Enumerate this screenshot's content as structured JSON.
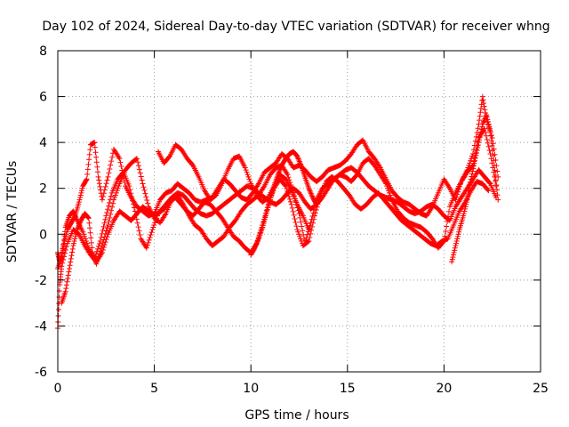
{
  "chart_data": {
    "type": "scatter",
    "title": "Day 102 of 2024, Sidereal Day-to-day VTEC variation (SDTVAR) for receiver whng",
    "xlabel": "GPS time / hours",
    "ylabel": "SDTVAR / TECUs",
    "xlim": [
      0,
      25
    ],
    "ylim": [
      -6,
      8
    ],
    "xticks": [
      0,
      5,
      10,
      15,
      20,
      25
    ],
    "yticks": [
      -6,
      -4,
      -2,
      0,
      2,
      4,
      6,
      8
    ],
    "grid": true,
    "marker": "+",
    "color": "#ff0000",
    "series": [
      {
        "name": "track1",
        "x": [
          0.0,
          0.1,
          0.2,
          0.3,
          0.5,
          0.7,
          0.9,
          1.1,
          1.3,
          1.5,
          1.7,
          1.9,
          2.1,
          2.3,
          2.6,
          2.9,
          3.2,
          3.5,
          3.8,
          4.1,
          4.4,
          4.7,
          5.0,
          5.3,
          5.6,
          5.9,
          6.2,
          6.5,
          6.8,
          7.1,
          7.4,
          7.7,
          8.0,
          8.3,
          8.6,
          8.9,
          9.2,
          9.5,
          9.8,
          10.1,
          10.4,
          10.7,
          11.0,
          11.3,
          11.6,
          11.9,
          12.2,
          12.5,
          12.8,
          13.1,
          13.4,
          13.7,
          14.0,
          14.3,
          14.6,
          14.9,
          15.2,
          15.5,
          15.8,
          16.1,
          16.4,
          16.7,
          17.0,
          17.3,
          17.6,
          17.9,
          18.2,
          18.5,
          18.8,
          19.1,
          19.4,
          19.7,
          20.0,
          20.3,
          20.6,
          20.9,
          21.2,
          21.5,
          21.8,
          22.0,
          22.2,
          22.5,
          22.8
        ],
        "y": [
          -0.8,
          -1.2,
          -1.0,
          -0.5,
          0.2,
          0.5,
          0.8,
          1.4,
          2.1,
          2.4,
          3.9,
          4.0,
          2.5,
          1.5,
          2.5,
          3.7,
          3.3,
          2.1,
          1.6,
          1.2,
          1.0,
          0.8,
          0.9,
          1.5,
          1.8,
          1.9,
          2.2,
          2.0,
          1.8,
          1.5,
          1.4,
          1.5,
          1.6,
          2.0,
          2.4,
          2.2,
          1.9,
          1.6,
          1.5,
          1.8,
          2.2,
          2.7,
          2.9,
          3.1,
          3.5,
          3.3,
          2.9,
          3.0,
          2.8,
          2.5,
          2.3,
          2.5,
          2.8,
          2.9,
          3.0,
          3.2,
          3.5,
          3.9,
          4.1,
          3.6,
          3.3,
          2.9,
          2.4,
          1.9,
          1.6,
          1.4,
          1.3,
          1.1,
          0.9,
          0.8,
          1.2,
          1.8,
          2.4,
          2.0,
          1.5,
          2.3,
          2.8,
          3.5,
          4.8,
          6.0,
          5.0,
          4.2,
          2.5
        ]
      },
      {
        "name": "track2",
        "x": [
          0.2,
          0.4,
          0.6,
          0.8,
          1.0,
          1.2,
          1.4,
          1.6,
          1.8,
          2.0,
          2.3,
          2.6,
          2.9,
          3.2,
          3.5,
          3.8,
          4.1,
          4.4,
          4.7,
          5.0,
          5.3,
          5.6,
          5.9,
          6.2,
          6.5,
          6.8,
          7.1,
          7.4,
          7.7,
          8.0,
          8.3,
          8.6,
          8.9,
          9.2,
          9.5,
          9.8,
          10.1,
          10.4,
          10.7,
          11.0,
          11.3,
          11.6,
          11.9,
          12.2,
          12.5,
          12.8,
          13.1,
          13.4,
          13.7,
          14.0,
          14.3,
          14.6,
          14.9,
          15.2,
          15.5,
          15.8,
          16.1,
          16.4,
          16.7,
          17.0,
          17.3,
          17.6,
          17.9,
          18.2,
          18.5,
          18.8,
          19.1,
          19.4,
          19.7,
          20.0,
          20.3,
          20.6,
          20.9,
          21.2,
          21.5,
          21.8,
          22.1,
          22.4,
          22.7
        ],
        "y": [
          -3.0,
          -2.5,
          -1.5,
          -0.5,
          0.2,
          0.6,
          0.9,
          0.7,
          -0.8,
          -1.3,
          -0.5,
          0.4,
          1.5,
          2.2,
          2.8,
          3.1,
          3.3,
          2.2,
          1.2,
          0.7,
          0.5,
          0.9,
          1.5,
          1.7,
          1.3,
          0.8,
          0.4,
          0.2,
          -0.2,
          -0.5,
          -0.3,
          -0.1,
          0.3,
          0.6,
          1.0,
          1.3,
          1.5,
          1.7,
          2.1,
          2.6,
          2.9,
          3.0,
          2.6,
          1.8,
          0.9,
          -0.4,
          0.5,
          1.5,
          2.0,
          2.2,
          2.4,
          2.6,
          2.5,
          2.3,
          2.6,
          3.1,
          3.3,
          3.0,
          2.6,
          2.2,
          1.5,
          1.0,
          0.7,
          0.5,
          0.4,
          0.3,
          0.1,
          -0.2,
          -0.6,
          -0.3,
          1.2,
          1.8,
          2.3,
          2.7,
          3.0,
          4.2,
          4.6,
          3.5,
          2.1
        ]
      },
      {
        "name": "track3",
        "x": [
          0.0,
          0.2,
          0.4,
          0.6,
          0.8,
          1.0,
          1.3,
          1.6,
          1.9,
          2.2,
          2.5,
          2.8,
          3.1,
          3.4,
          3.7,
          4.0,
          4.3,
          4.6,
          4.9,
          5.2,
          5.5,
          5.8,
          6.1,
          6.4,
          6.7,
          7.0,
          7.3,
          7.6,
          7.9,
          8.2,
          8.5,
          8.8,
          9.1,
          9.4,
          9.7,
          10.0,
          10.3,
          10.6,
          10.9,
          11.2,
          11.5,
          11.8,
          12.1,
          12.4,
          12.7,
          13.0,
          13.3,
          13.6,
          13.9,
          14.2,
          14.5,
          14.8,
          15.1,
          15.4,
          15.7,
          16.0,
          16.3,
          16.6,
          16.9,
          17.2,
          17.5,
          17.8,
          18.1,
          18.4,
          18.7,
          19.0,
          19.3,
          19.6,
          19.9,
          20.2,
          20.5,
          20.8,
          21.1,
          21.4,
          21.7,
          22.0,
          22.3
        ],
        "y": [
          -1.5,
          -1.0,
          0.3,
          0.8,
          1.0,
          0.6,
          0.1,
          -0.6,
          -1.1,
          -0.3,
          0.8,
          1.8,
          2.4,
          2.7,
          2.1,
          1.0,
          -0.2,
          -0.6,
          0.2,
          0.9,
          1.1,
          1.4,
          1.6,
          1.3,
          1.0,
          0.8,
          1.1,
          1.4,
          1.3,
          1.0,
          0.7,
          0.3,
          -0.1,
          -0.3,
          -0.6,
          -0.8,
          -0.4,
          0.4,
          1.3,
          2.0,
          2.4,
          2.1,
          1.3,
          0.2,
          -0.5,
          -0.3,
          0.8,
          1.7,
          2.3,
          2.5,
          2.3,
          2.0,
          1.7,
          1.3,
          1.1,
          1.3,
          1.6,
          1.8,
          1.5,
          1.2,
          0.9,
          0.6,
          0.4,
          0.2,
          0.0,
          -0.2,
          -0.4,
          -0.5,
          -0.3,
          -0.2,
          0.4,
          1.0,
          1.4,
          1.9,
          2.3,
          2.2,
          1.9
        ]
      },
      {
        "name": "track4",
        "x": [
          0.0,
          0.1,
          0.2,
          0.5,
          0.8,
          1.1,
          1.4,
          1.7,
          2.0,
          2.3,
          2.6,
          2.9,
          3.2,
          3.5,
          3.8,
          4.1,
          4.4,
          4.7,
          5.0,
          5.3,
          5.6,
          5.9,
          6.2,
          6.5,
          6.8,
          7.1,
          7.4,
          7.7,
          8.0,
          8.3,
          8.6,
          8.9,
          9.2,
          9.5,
          9.8,
          10.1,
          10.4,
          10.7,
          11.0,
          11.3,
          11.6,
          11.9,
          12.2,
          12.5,
          12.8,
          13.1,
          13.4,
          13.7,
          14.0,
          14.3,
          14.6,
          14.9,
          15.2,
          15.5,
          15.8,
          16.1,
          16.4,
          16.7,
          17.0,
          17.3,
          17.6,
          17.9,
          18.2,
          18.5,
          18.8,
          19.1,
          19.4,
          19.7,
          20.0,
          20.3,
          20.6,
          20.9,
          21.2,
          21.5,
          21.8,
          22.1,
          22.4,
          22.7
        ],
        "y": [
          -4.1,
          -2.2,
          -1.4,
          -0.4,
          0.2,
          0.0,
          -0.5,
          -0.9,
          -1.2,
          -0.8,
          0.0,
          0.6,
          1.0,
          0.8,
          0.6,
          0.9,
          1.2,
          1.0,
          0.8,
          1.0,
          1.3,
          1.6,
          1.8,
          1.7,
          1.4,
          1.1,
          0.9,
          0.8,
          0.9,
          1.1,
          1.3,
          1.5,
          1.7,
          1.9,
          2.1,
          2.0,
          1.8,
          1.6,
          1.4,
          1.3,
          1.5,
          1.8,
          2.0,
          1.8,
          1.4,
          1.1,
          1.3,
          1.6,
          2.0,
          2.4,
          2.6,
          2.8,
          2.9,
          2.7,
          2.4,
          2.1,
          1.9,
          1.7,
          1.6,
          1.5,
          1.4,
          1.2,
          1.0,
          0.9,
          1.0,
          1.2,
          1.3,
          1.1,
          0.8,
          0.6,
          1.2,
          1.6,
          2.0,
          2.4,
          2.8,
          2.5,
          2.2,
          1.6
        ]
      },
      {
        "name": "track5",
        "x": [
          5.2,
          5.5,
          5.8,
          6.1,
          6.4,
          6.7,
          7.0,
          7.3,
          7.6,
          7.9,
          8.2,
          8.5,
          8.8,
          9.1,
          9.4,
          9.7,
          10.0,
          10.3,
          10.6,
          10.9,
          11.2,
          11.5,
          11.8,
          12.1,
          12.4,
          12.7,
          13.0
        ],
        "y": [
          3.6,
          3.1,
          3.4,
          3.9,
          3.7,
          3.3,
          3.0,
          2.5,
          1.9,
          1.5,
          1.7,
          2.2,
          2.8,
          3.3,
          3.4,
          2.9,
          2.2,
          1.7,
          1.4,
          1.6,
          2.1,
          2.6,
          2.4,
          1.9,
          1.3,
          0.8,
          0.2
        ]
      },
      {
        "name": "track6",
        "x": [
          10.0,
          10.2,
          10.4,
          10.6,
          10.8,
          11.0,
          11.2,
          11.4,
          11.6,
          11.8,
          12.0,
          12.2,
          12.4,
          12.6,
          12.8,
          13.0,
          13.2,
          13.4
        ],
        "y": [
          -0.9,
          -0.6,
          -0.2,
          0.3,
          0.9,
          1.5,
          2.1,
          2.6,
          3.0,
          3.3,
          3.5,
          3.6,
          3.4,
          3.0,
          2.5,
          2.0,
          1.6,
          1.3
        ]
      },
      {
        "name": "track7",
        "x": [
          20.4,
          20.6,
          20.8,
          21.0,
          21.2,
          21.4,
          21.6,
          21.8,
          22.0,
          22.2,
          22.4,
          22.6,
          22.8
        ],
        "y": [
          -1.2,
          -0.5,
          0.2,
          0.8,
          1.5,
          2.4,
          3.2,
          4.0,
          4.8,
          5.2,
          4.5,
          3.0,
          1.5
        ]
      }
    ]
  }
}
